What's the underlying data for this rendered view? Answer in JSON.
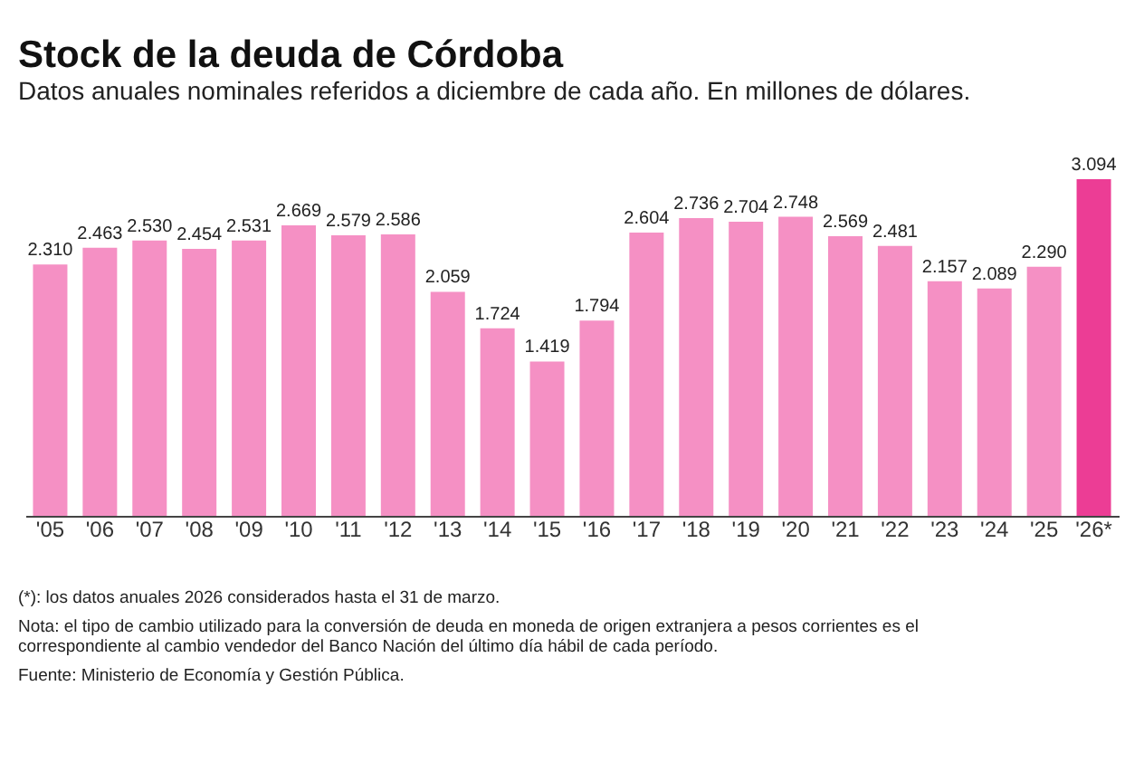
{
  "chart_data": {
    "type": "bar",
    "title": "Stock de la deuda de Córdoba",
    "subtitle": "Datos anuales nominales referidos a diciembre de cada año. En millones de dólares.",
    "categories": [
      "'05",
      "'06",
      "'07",
      "'08",
      "'09",
      "'10",
      "'11",
      "'12",
      "'13",
      "'14",
      "'15",
      "'16",
      "'17",
      "'18",
      "'19",
      "'20",
      "'21",
      "'22",
      "'23",
      "'24",
      "'25",
      "'26*"
    ],
    "values": [
      2310,
      2463,
      2530,
      2454,
      2531,
      2669,
      2579,
      2586,
      2059,
      1724,
      1419,
      1794,
      2604,
      2736,
      2704,
      2748,
      2569,
      2481,
      2157,
      2089,
      2290,
      3094
    ],
    "value_labels": [
      "2.310",
      "2.463",
      "2.530",
      "2.454",
      "2.531",
      "2.669",
      "2.579",
      "2.586",
      "2.059",
      "1.724",
      "1.419",
      "1.794",
      "2.604",
      "2.736",
      "2.704",
      "2.748",
      "2.569",
      "2.481",
      "2.157",
      "2.089",
      "2.290",
      "3.094"
    ],
    "colors": [
      "#f590c4",
      "#f590c4",
      "#f590c4",
      "#f590c4",
      "#f590c4",
      "#f590c4",
      "#f590c4",
      "#f590c4",
      "#f590c4",
      "#f590c4",
      "#f590c4",
      "#f590c4",
      "#f590c4",
      "#f590c4",
      "#f590c4",
      "#f590c4",
      "#f590c4",
      "#f590c4",
      "#f590c4",
      "#f590c4",
      "#f590c4",
      "#ec3d95"
    ],
    "annotations": [
      "(*): los datos anuales 2026 considerados hasta el 31 de marzo.",
      "Nota: el tipo de cambio utilizado para la conversión de deuda en moneda de origen extranjera a pesos corrientes es el correspondiente al cambio vendedor del Banco Nación del último día hábil de cada período.",
      "Fuente: Ministerio de Economía y Gestión Pública."
    ],
    "grid": false
  }
}
